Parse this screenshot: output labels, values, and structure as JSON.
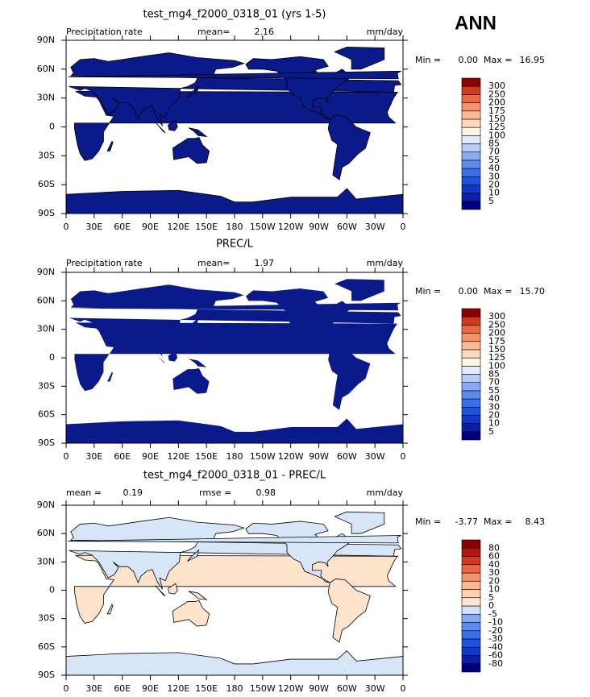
{
  "figure_label": "ANN",
  "lat_labels": [
    "90N",
    "60N",
    "30N",
    "0",
    "30S",
    "60S",
    "90S"
  ],
  "lon_labels": [
    "0",
    "30E",
    "60E",
    "90E",
    "120E",
    "150E",
    "180",
    "150W",
    "120W",
    "90W",
    "60W",
    "30W",
    "0"
  ],
  "panels": [
    {
      "title": "test_mg4_f2000_0318_01 (yrs 1-5)",
      "left_label": "Precipitation rate",
      "stats": [
        {
          "label": "mean=",
          "value": "2.16"
        }
      ],
      "units": "mm/day",
      "min_label": "Min =",
      "min": "0.00",
      "max_label": "Max =",
      "max": "16.95",
      "levels": [
        5,
        10,
        20,
        30,
        40,
        55,
        70,
        85,
        100,
        125,
        150,
        175,
        200,
        250,
        300
      ],
      "colors": [
        "#00007f",
        "#0a1ea8",
        "#1036cc",
        "#1c52e0",
        "#3a6fea",
        "#5b8cf0",
        "#86abf4",
        "#b7cdf7",
        "#e0ebfb",
        "#fff3e6",
        "#fdd9bd",
        "#fbb996",
        "#f6926c",
        "#ec6844",
        "#d23a1e",
        "#8b0000"
      ],
      "land_fill": "#0b1a8a"
    },
    {
      "title": "PREC/L",
      "left_label": "Precipitation rate",
      "stats": [
        {
          "label": "mean=",
          "value": "1.97"
        }
      ],
      "units": "mm/day",
      "min_label": "Min =",
      "min": "0.00",
      "max_label": "Max =",
      "max": "15.70",
      "levels": [
        5,
        10,
        20,
        30,
        40,
        55,
        70,
        85,
        100,
        125,
        150,
        175,
        200,
        250,
        300
      ],
      "colors": [
        "#00007f",
        "#0a1ea8",
        "#1036cc",
        "#1c52e0",
        "#3a6fea",
        "#5b8cf0",
        "#86abf4",
        "#b7cdf7",
        "#e0ebfb",
        "#fff3e6",
        "#fdd9bd",
        "#fbb996",
        "#f6926c",
        "#ec6844",
        "#d23a1e",
        "#8b0000"
      ],
      "land_fill": "#0b1a8a"
    },
    {
      "title": "test_mg4_f2000_0318_01 - PREC/L",
      "left_label": "",
      "stats": [
        {
          "label": "mean =",
          "value": "0.19"
        },
        {
          "label": "rmse =",
          "value": "0.98"
        }
      ],
      "units": "mm/day",
      "min_label": "Min =",
      "min": "-3.77",
      "max_label": "Max =",
      "max": "8.43",
      "levels": [
        -80,
        -60,
        -40,
        -30,
        -20,
        -10,
        -5,
        0,
        5,
        10,
        20,
        30,
        40,
        60,
        80
      ],
      "colors": [
        "#00007f",
        "#0a1ea8",
        "#1036cc",
        "#1c52e0",
        "#3a6fea",
        "#5b8cf0",
        "#86abf4",
        "#d2e3f7",
        "#fde6d2",
        "#fdd0b0",
        "#fbb996",
        "#f6926c",
        "#ec6844",
        "#d23a1e",
        "#b01808",
        "#8b0000"
      ],
      "land_fill": "#fde3cc"
    }
  ]
}
